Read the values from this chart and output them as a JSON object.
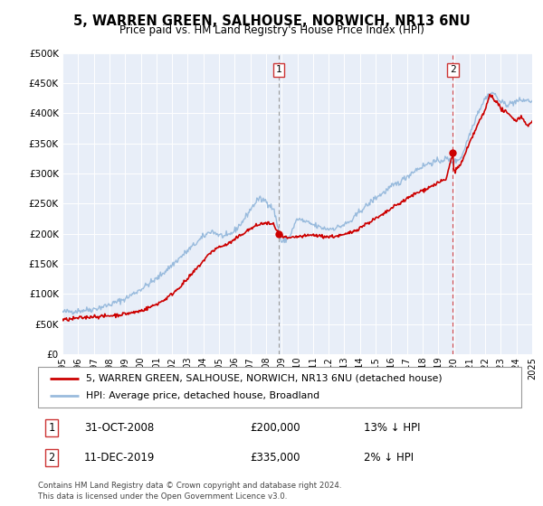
{
  "title": "5, WARREN GREEN, SALHOUSE, NORWICH, NR13 6NU",
  "subtitle": "Price paid vs. HM Land Registry's House Price Index (HPI)",
  "legend_line1": "5, WARREN GREEN, SALHOUSE, NORWICH, NR13 6NU (detached house)",
  "legend_line2": "HPI: Average price, detached house, Broadland",
  "footer": "Contains HM Land Registry data © Crown copyright and database right 2024.\nThis data is licensed under the Open Government Licence v3.0.",
  "annotation1_label": "1",
  "annotation1_date": "31-OCT-2008",
  "annotation1_value": "£200,000",
  "annotation1_pct": "13% ↓ HPI",
  "annotation2_label": "2",
  "annotation2_date": "11-DEC-2019",
  "annotation2_value": "£335,000",
  "annotation2_pct": "2% ↓ HPI",
  "marker1_x": 2008.83,
  "marker1_y": 200000,
  "marker2_x": 2019.94,
  "marker2_y": 335000,
  "vline1_x": 2008.83,
  "vline2_x": 2019.94,
  "property_color": "#cc0000",
  "hpi_color": "#99bbdd",
  "background_color": "#e8eef8",
  "ylim": [
    0,
    500000
  ],
  "xlim_start": 1995,
  "xlim_end": 2025,
  "yticks": [
    0,
    50000,
    100000,
    150000,
    200000,
    250000,
    300000,
    350000,
    400000,
    450000,
    500000
  ],
  "xticks": [
    1995,
    1996,
    1997,
    1998,
    1999,
    2000,
    2001,
    2002,
    2003,
    2004,
    2005,
    2006,
    2007,
    2008,
    2009,
    2010,
    2011,
    2012,
    2013,
    2014,
    2015,
    2016,
    2017,
    2018,
    2019,
    2020,
    2021,
    2022,
    2023,
    2024,
    2025
  ]
}
